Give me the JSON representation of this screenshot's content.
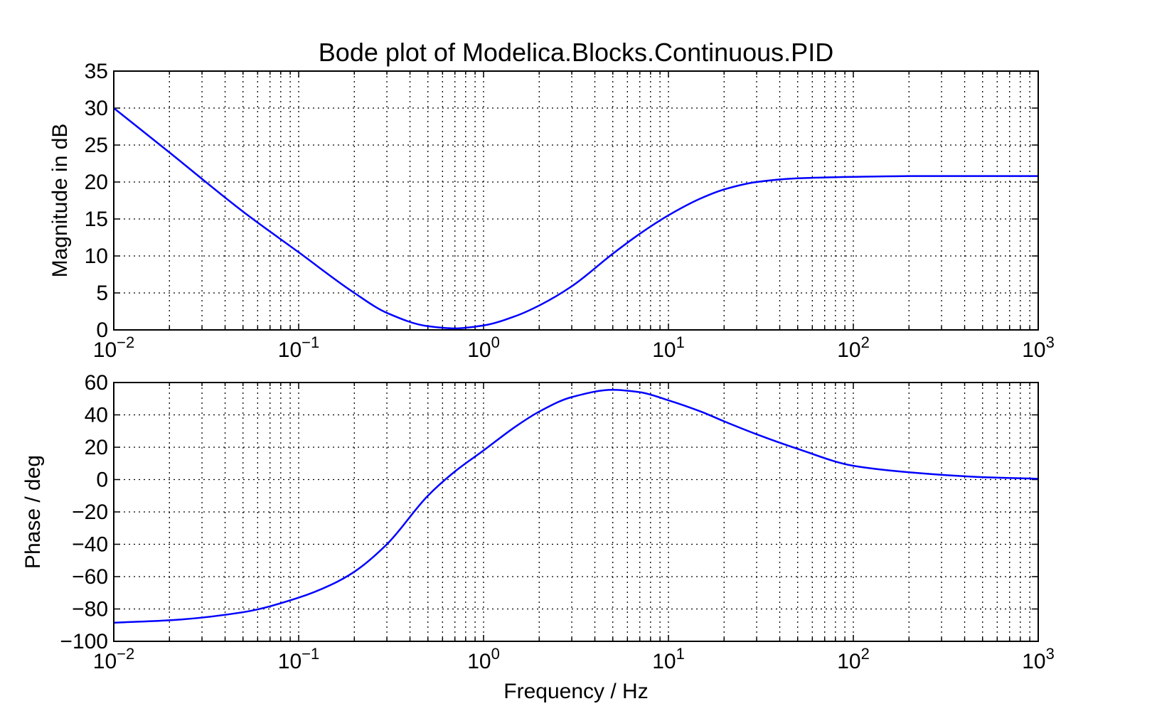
{
  "chart_data": [
    {
      "type": "line",
      "title": "Bode plot of Modelica.Blocks.Continuous.PID",
      "xlabel": "",
      "ylabel": "Magnitude in dB",
      "xscale": "log",
      "xlim": [
        0.01,
        1000
      ],
      "ylim": [
        0,
        35
      ],
      "grid": true,
      "line_color": "#0000ff",
      "x_ticks": [
        {
          "value": 0.01,
          "base": "10",
          "exp": "−2"
        },
        {
          "value": 0.1,
          "base": "10",
          "exp": "−1"
        },
        {
          "value": 1,
          "base": "10",
          "exp": "0"
        },
        {
          "value": 10,
          "base": "10",
          "exp": "1"
        },
        {
          "value": 100,
          "base": "10",
          "exp": "2"
        },
        {
          "value": 1000,
          "base": "10",
          "exp": "3"
        }
      ],
      "y_ticks": [
        {
          "value": 0,
          "label": "0"
        },
        {
          "value": 5,
          "label": "5"
        },
        {
          "value": 10,
          "label": "10"
        },
        {
          "value": 15,
          "label": "15"
        },
        {
          "value": 20,
          "label": "20"
        },
        {
          "value": 25,
          "label": "25"
        },
        {
          "value": 30,
          "label": "30"
        },
        {
          "value": 35,
          "label": "35"
        }
      ],
      "series": [
        {
          "x": [
            0.01,
            0.02,
            0.05,
            0.1,
            0.2,
            0.3,
            0.5,
            0.7,
            1,
            1.5,
            2,
            3,
            5,
            7,
            10,
            15,
            20,
            30,
            50,
            100,
            200,
            500,
            1000
          ],
          "y": [
            30,
            24,
            16,
            10.5,
            5,
            2.3,
            0.5,
            0.2,
            0.6,
            1.9,
            3.3,
            5.9,
            10.3,
            13,
            15.5,
            17.8,
            19,
            20,
            20.5,
            20.7,
            20.8,
            20.8,
            20.8
          ]
        }
      ]
    },
    {
      "type": "line",
      "title": "",
      "xlabel": "Frequency / Hz",
      "ylabel": "Phase / deg",
      "xscale": "log",
      "xlim": [
        0.01,
        1000
      ],
      "ylim": [
        -100,
        60
      ],
      "grid": true,
      "line_color": "#0000ff",
      "x_ticks": [
        {
          "value": 0.01,
          "base": "10",
          "exp": "−2"
        },
        {
          "value": 0.1,
          "base": "10",
          "exp": "−1"
        },
        {
          "value": 1,
          "base": "10",
          "exp": "0"
        },
        {
          "value": 10,
          "base": "10",
          "exp": "1"
        },
        {
          "value": 100,
          "base": "10",
          "exp": "2"
        },
        {
          "value": 1000,
          "base": "10",
          "exp": "3"
        }
      ],
      "y_ticks": [
        {
          "value": 60,
          "label": "60"
        },
        {
          "value": 40,
          "label": "40"
        },
        {
          "value": 20,
          "label": "20"
        },
        {
          "value": 0,
          "label": "0"
        },
        {
          "value": -20,
          "label": "−20"
        },
        {
          "value": -40,
          "label": "−40"
        },
        {
          "value": -60,
          "label": "−60"
        },
        {
          "value": -80,
          "label": "−80"
        },
        {
          "value": -100,
          "label": "−100"
        }
      ],
      "series": [
        {
          "x": [
            0.01,
            0.02,
            0.05,
            0.1,
            0.15,
            0.2,
            0.3,
            0.5,
            0.7,
            1,
            1.5,
            2,
            3,
            5,
            7,
            10,
            15,
            20,
            30,
            50,
            100,
            200,
            500,
            1000
          ],
          "y": [
            -88.5,
            -87,
            -82,
            -73,
            -65,
            -57,
            -40,
            -10,
            5,
            18,
            33,
            42,
            51,
            55.5,
            54,
            49,
            42,
            36,
            28,
            19,
            8.5,
            4.5,
            1.5,
            0.5
          ]
        }
      ]
    }
  ]
}
